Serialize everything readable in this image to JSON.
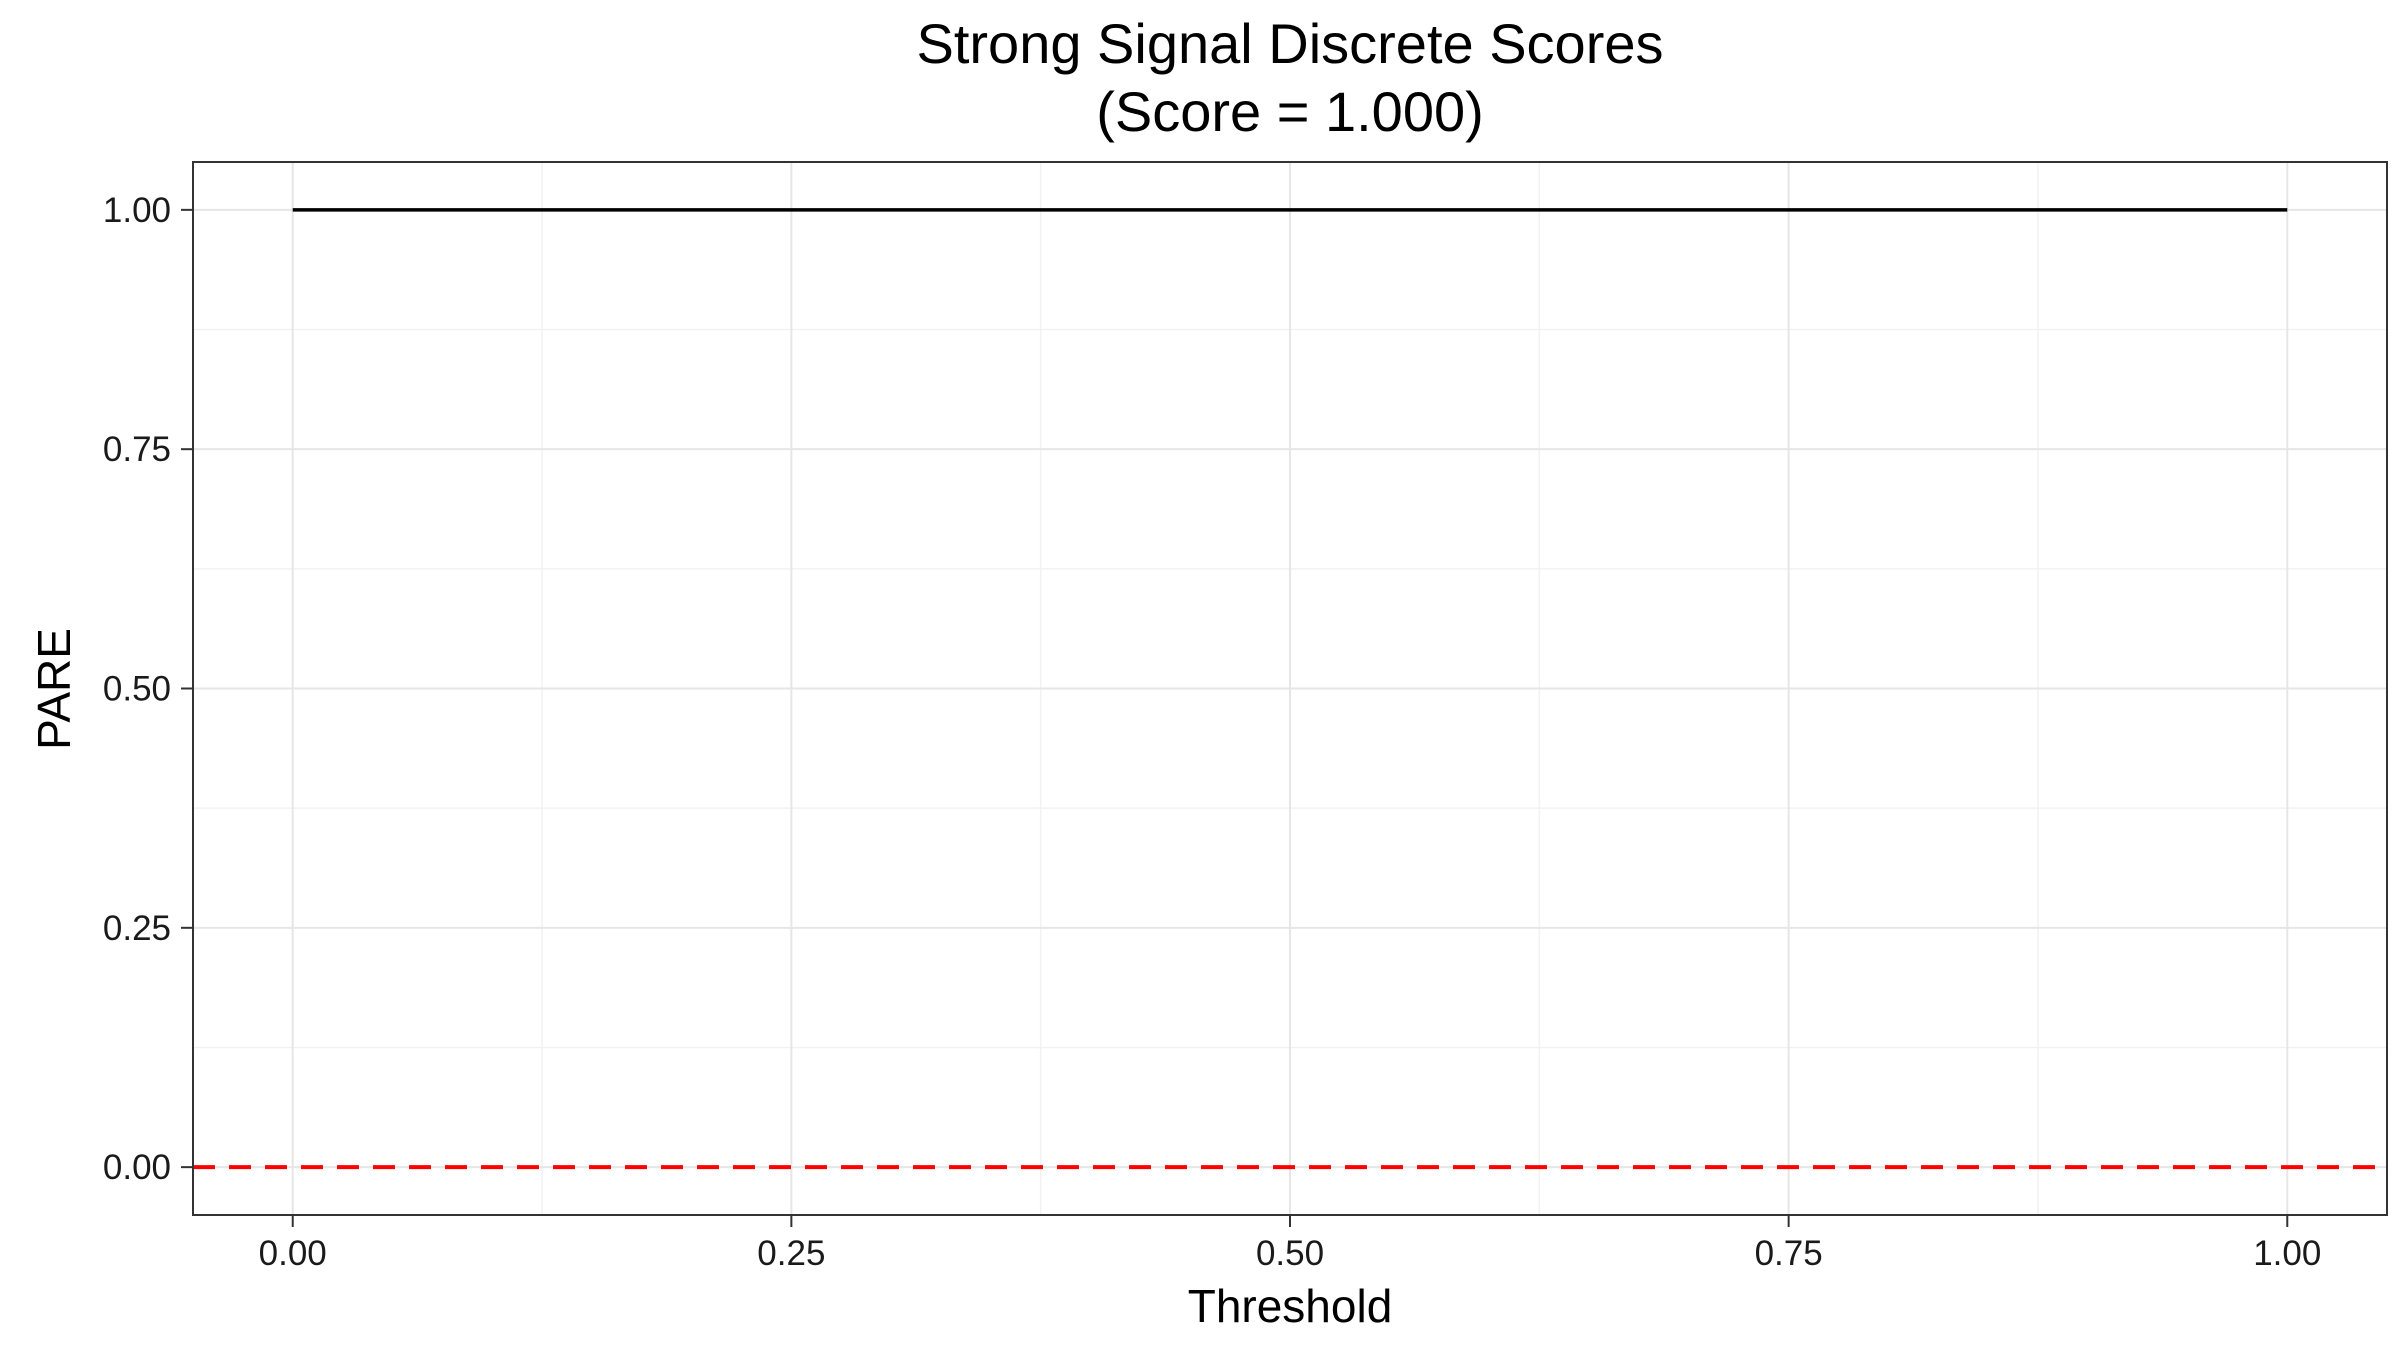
{
  "chart_data": {
    "type": "line",
    "title": "Strong Signal Discrete Scores",
    "subtitle": "(Score = 1.000)",
    "xlabel": "Threshold",
    "ylabel": "PARE",
    "xlim": [
      -0.05,
      1.05
    ],
    "ylim": [
      -0.05,
      1.05
    ],
    "x_ticks": [
      0,
      0.25,
      0.5,
      0.75,
      1
    ],
    "x_tick_labels": [
      "0.00",
      "0.25",
      "0.50",
      "0.75",
      "1.00"
    ],
    "y_ticks": [
      0,
      0.25,
      0.5,
      0.75,
      1
    ],
    "y_tick_labels": [
      "0.00",
      "0.25",
      "0.50",
      "0.75",
      "1.00"
    ],
    "grid": true,
    "series": [
      {
        "x": [
          0,
          1
        ],
        "values": [
          1,
          1
        ],
        "color": "#000000",
        "style": "solid"
      }
    ],
    "reference_lines": [
      {
        "orientation": "horizontal",
        "y": 0,
        "color": "#ff0000",
        "style": "dashed"
      }
    ]
  },
  "colors": {
    "background": "#ffffff",
    "panel_border": "#333333",
    "grid_major": "#e6e6e6",
    "grid_minor": "#f2f2f2",
    "axis_tick": "#333333"
  }
}
